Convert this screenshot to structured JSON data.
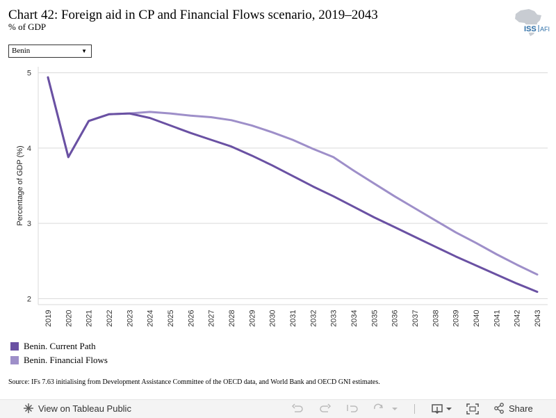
{
  "header": {
    "title": "Chart 42: Foreign aid in CP and Financial Flows scenario, 2019–2043",
    "subtitle": "% of GDP",
    "logo_text_left": "ISS",
    "logo_text_right": "AFI"
  },
  "filter": {
    "selected": "Benin"
  },
  "chart_data": {
    "type": "line",
    "x": [
      2019,
      2020,
      2021,
      2022,
      2023,
      2024,
      2025,
      2026,
      2027,
      2028,
      2029,
      2030,
      2031,
      2032,
      2033,
      2034,
      2035,
      2036,
      2037,
      2038,
      2039,
      2040,
      2041,
      2042,
      2043
    ],
    "ylabel": "Percentage of GDP (%)",
    "xlabel": "",
    "yticks": [
      2,
      3,
      4,
      5
    ],
    "ylim": [
      1.92,
      5.08
    ],
    "grid": true,
    "legend_position": "bottom-left",
    "series": [
      {
        "name": "Benin. Current Path",
        "color": "#6a51a3",
        "values": [
          4.94,
          3.88,
          4.36,
          4.45,
          4.46,
          4.4,
          4.3,
          4.2,
          4.11,
          4.02,
          3.9,
          3.77,
          3.63,
          3.49,
          3.36,
          3.22,
          3.08,
          2.95,
          2.82,
          2.69,
          2.56,
          2.44,
          2.32,
          2.2,
          2.09
        ]
      },
      {
        "name": "Benin. Financial Flows",
        "color": "#9e8fc9",
        "values": [
          4.94,
          3.88,
          4.36,
          4.45,
          4.46,
          4.48,
          4.46,
          4.43,
          4.41,
          4.37,
          4.3,
          4.21,
          4.11,
          3.99,
          3.88,
          3.7,
          3.53,
          3.36,
          3.2,
          3.04,
          2.88,
          2.74,
          2.59,
          2.45,
          2.32
        ]
      }
    ]
  },
  "source": "Source: IFs 7.63 initialising from Development Assistance Committee of the OECD data, and World Bank and OECD GNI estimates.",
  "toolbar": {
    "view_label": "View on Tableau Public",
    "share_label": "Share"
  }
}
